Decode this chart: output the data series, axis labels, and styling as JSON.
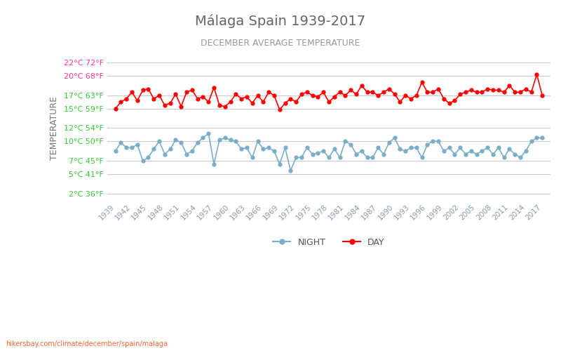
{
  "title": "Málaga Spain 1939-2017",
  "subtitle": "DECEMBER AVERAGE TEMPERATURE",
  "ylabel": "TEMPERATURE",
  "watermark": "hikersbay.com/climate/december/spain/malaga",
  "bg_color": "#ffffff",
  "grid_color": "#cccccc",
  "day_color": "#ff0000",
  "night_color": "#7aaec8",
  "title_color": "#666666",
  "subtitle_color": "#999999",
  "ylabel_color": "#777777",
  "ytick_color_green": "#33cc33",
  "ytick_color_pink": "#ff3399",
  "years": [
    1939,
    1940,
    1941,
    1942,
    1943,
    1944,
    1945,
    1946,
    1947,
    1948,
    1949,
    1950,
    1951,
    1952,
    1953,
    1954,
    1955,
    1956,
    1957,
    1958,
    1959,
    1960,
    1961,
    1962,
    1963,
    1964,
    1965,
    1966,
    1967,
    1968,
    1969,
    1970,
    1971,
    1972,
    1973,
    1974,
    1975,
    1976,
    1977,
    1978,
    1979,
    1980,
    1981,
    1982,
    1983,
    1984,
    1985,
    1986,
    1987,
    1988,
    1989,
    1990,
    1991,
    1992,
    1993,
    1994,
    1995,
    1996,
    1997,
    1998,
    1999,
    2000,
    2001,
    2002,
    2003,
    2004,
    2005,
    2006,
    2007,
    2008,
    2009,
    2010,
    2011,
    2012,
    2013,
    2014,
    2015,
    2016,
    2017
  ],
  "day_temps": [
    15.0,
    16.0,
    16.5,
    17.5,
    16.2,
    17.8,
    18.0,
    16.5,
    17.0,
    15.5,
    15.8,
    17.2,
    15.3,
    17.5,
    17.8,
    16.5,
    16.8,
    16.0,
    18.2,
    15.5,
    15.3,
    16.0,
    17.2,
    16.5,
    16.8,
    15.8,
    17.0,
    16.0,
    17.5,
    17.0,
    14.8,
    15.8,
    16.5,
    16.0,
    17.2,
    17.5,
    17.0,
    16.8,
    17.5,
    16.0,
    16.8,
    17.5,
    17.0,
    17.8,
    17.2,
    18.5,
    17.5,
    17.5,
    17.0,
    17.5,
    18.0,
    17.2,
    16.0,
    17.0,
    16.5,
    17.0,
    19.0,
    17.5,
    17.5,
    18.0,
    16.5,
    15.8,
    16.2,
    17.2,
    17.5,
    17.8,
    17.5,
    17.5,
    18.0,
    17.8,
    17.8,
    17.5,
    18.5,
    17.5,
    17.5,
    18.0,
    17.5,
    20.2,
    17.0
  ],
  "night_temps": [
    8.5,
    9.8,
    9.0,
    9.0,
    9.5,
    7.0,
    7.5,
    8.8,
    10.0,
    8.0,
    8.8,
    10.2,
    9.8,
    8.0,
    8.5,
    9.8,
    10.5,
    11.2,
    6.5,
    10.2,
    10.5,
    10.2,
    10.0,
    8.8,
    9.0,
    7.5,
    10.0,
    8.8,
    9.0,
    8.5,
    6.5,
    9.0,
    5.5,
    7.5,
    7.5,
    9.0,
    8.0,
    8.2,
    8.5,
    7.5,
    8.8,
    7.5,
    10.0,
    9.5,
    8.0,
    8.5,
    7.5,
    7.5,
    9.0,
    8.0,
    9.8,
    10.5,
    8.8,
    8.5,
    9.0,
    9.0,
    7.5,
    9.5,
    10.0,
    10.0,
    8.5,
    9.0,
    8.0,
    9.0,
    8.0,
    8.5,
    8.0,
    8.5,
    9.0,
    8.0,
    9.0,
    7.5,
    8.8,
    8.0,
    7.5,
    8.5,
    10.0,
    10.5,
    10.5
  ],
  "yticks_celsius": [
    2,
    5,
    7,
    10,
    12,
    15,
    17,
    20,
    22
  ],
  "yticks_fahrenheit": [
    36,
    41,
    45,
    50,
    54,
    59,
    63,
    68,
    72
  ],
  "ylim": [
    1,
    23
  ],
  "xtick_years": [
    1939,
    1942,
    1945,
    1948,
    1951,
    1954,
    1957,
    1960,
    1963,
    1966,
    1969,
    1972,
    1975,
    1978,
    1981,
    1984,
    1987,
    1990,
    1993,
    1996,
    1999,
    2002,
    2005,
    2008,
    2011,
    2014,
    2017
  ]
}
